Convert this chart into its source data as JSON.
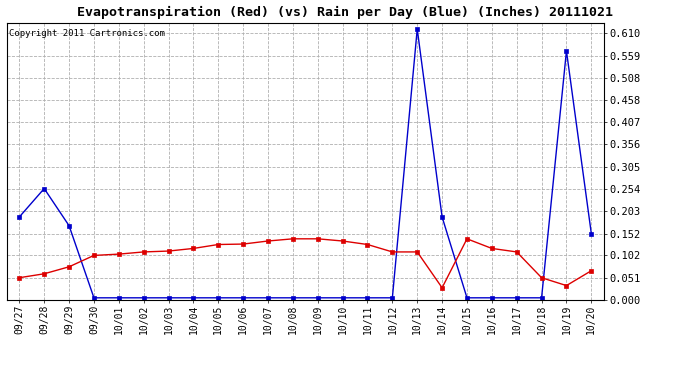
{
  "title": "Evapotranspiration (Red) (vs) Rain per Day (Blue) (Inches) 20111021",
  "copyright": "Copyright 2011 Cartronics.com",
  "x_labels": [
    "09/27",
    "09/28",
    "09/29",
    "09/30",
    "10/01",
    "10/02",
    "10/03",
    "10/04",
    "10/05",
    "10/06",
    "10/07",
    "10/08",
    "10/09",
    "10/10",
    "10/11",
    "10/12",
    "10/13",
    "10/14",
    "10/15",
    "10/16",
    "10/17",
    "10/18",
    "10/19",
    "10/20"
  ],
  "rain_blue": [
    0.19,
    0.255,
    0.17,
    0.005,
    0.005,
    0.005,
    0.005,
    0.005,
    0.005,
    0.005,
    0.005,
    0.005,
    0.005,
    0.005,
    0.005,
    0.005,
    0.62,
    0.19,
    0.005,
    0.005,
    0.005,
    0.005,
    0.57,
    0.152
  ],
  "et_red": [
    0.051,
    0.06,
    0.076,
    0.102,
    0.105,
    0.11,
    0.112,
    0.118,
    0.127,
    0.128,
    0.135,
    0.14,
    0.14,
    0.135,
    0.127,
    0.11,
    0.11,
    0.028,
    0.14,
    0.118,
    0.11,
    0.051,
    0.033,
    0.067
  ],
  "y_ticks": [
    0.0,
    0.051,
    0.102,
    0.152,
    0.203,
    0.254,
    0.305,
    0.356,
    0.407,
    0.458,
    0.508,
    0.559,
    0.61
  ],
  "ylim": [
    0.0,
    0.635
  ],
  "bg_color": "#ffffff",
  "grid_color": "#b0b0b0",
  "blue_color": "#0000cc",
  "red_color": "#dd0000",
  "title_fontsize": 9.5,
  "copyright_fontsize": 6.5,
  "tick_fontsize": 7,
  "ytick_fontsize": 7.5
}
